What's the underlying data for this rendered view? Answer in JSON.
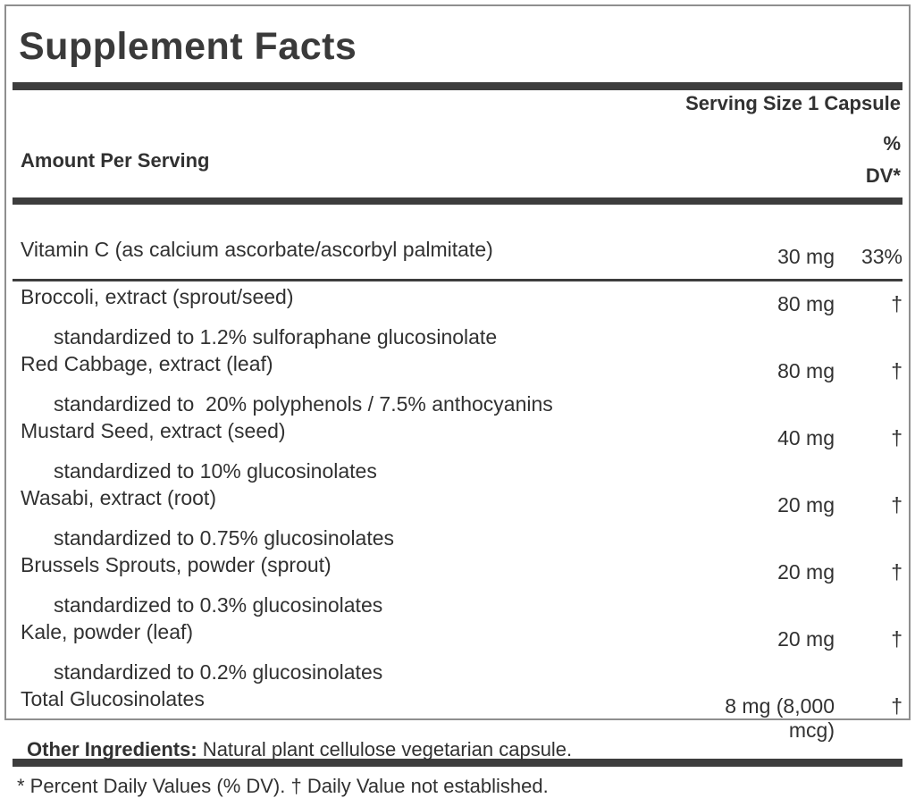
{
  "panel": {
    "title": "Supplement Facts",
    "serving_size": "Serving Size 1 Capsule",
    "header": {
      "amount_label": "Amount Per Serving",
      "dv_line1": "%",
      "dv_line2": "DV*"
    },
    "rows": [
      {
        "name": "Vitamin C (as calcium ascorbate/ascorbyl palmitate)",
        "amount": "30 mg",
        "dv": "33%"
      },
      {
        "name": "Broccoli, extract (sprout/seed)",
        "standardization": "standardized to 1.2% sulforaphane glucosinolate",
        "amount": "80 mg",
        "dv": "†"
      },
      {
        "name": "Red Cabbage, extract (leaf)",
        "standardization": "standardized to  20% polyphenols / 7.5% anthocyanins",
        "amount": "80 mg",
        "dv": "†"
      },
      {
        "name": "Mustard Seed, extract (seed)",
        "standardization": "standardized to 10% glucosinolates",
        "amount": "40 mg",
        "dv": "†"
      },
      {
        "name": "Wasabi, extract (root)",
        "standardization": "standardized to 0.75% glucosinolates",
        "amount": "20 mg",
        "dv": "†"
      },
      {
        "name": "Brussels Sprouts, powder (sprout)",
        "standardization": "standardized to 0.3% glucosinolates",
        "amount": "20 mg",
        "dv": "†"
      },
      {
        "name": "Kale, powder (leaf)",
        "standardization": "standardized to 0.2% glucosinolates",
        "amount": "20 mg",
        "dv": "†"
      },
      {
        "name": "Total Glucosinolates",
        "amount": "8 mg (8,000 mcg)",
        "dv": "†"
      }
    ],
    "footnote": "* Percent Daily Values (% DV). † Daily Value not established."
  },
  "other_ingredients": {
    "label": "Other Ingredients:",
    "text": " Natural plant cellulose vegetarian capsule."
  },
  "colors": {
    "text": "#313131",
    "bar": "#3d3d3d",
    "border": "#8f8f8f"
  }
}
